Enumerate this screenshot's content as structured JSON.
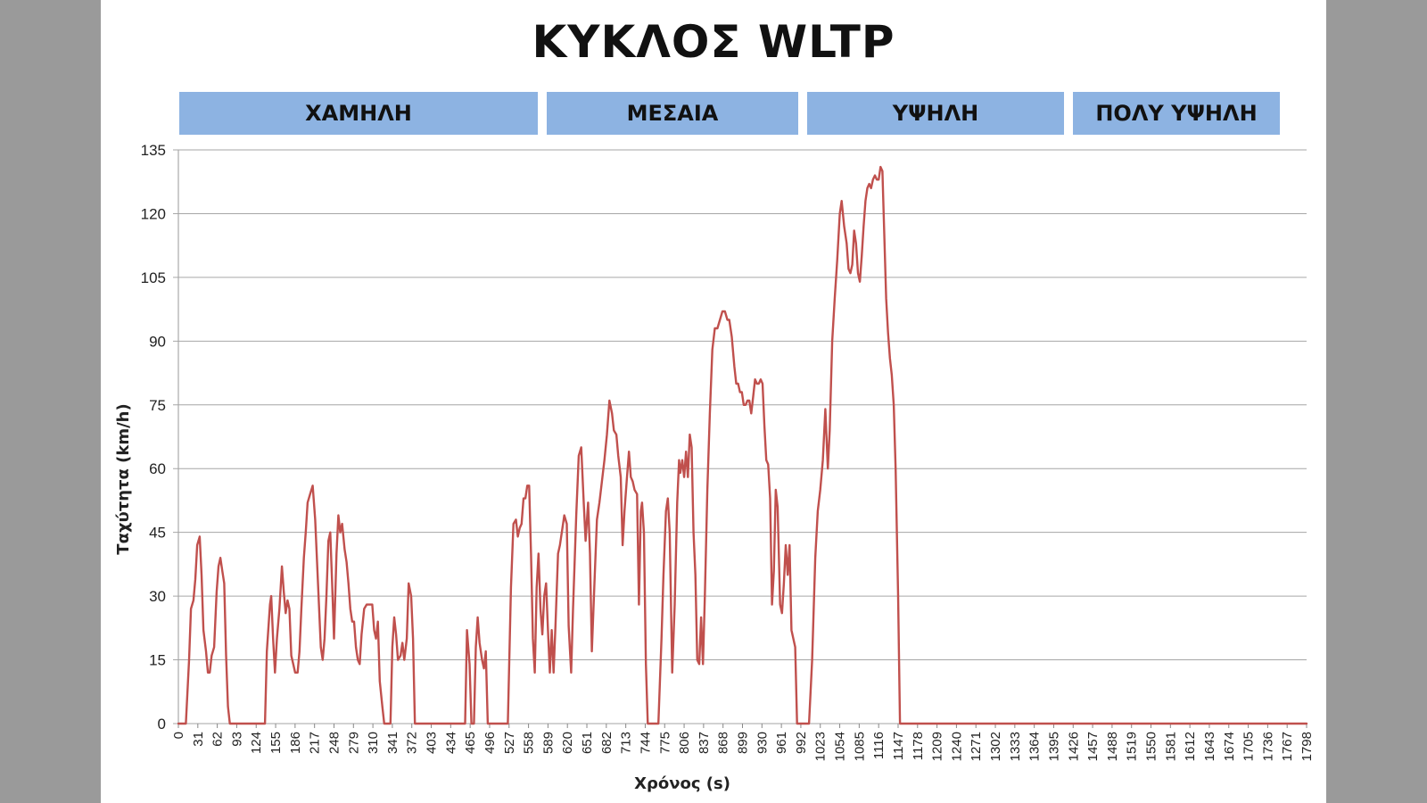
{
  "chart_data": {
    "type": "line",
    "title": "ΚΥΚΛΟΣ WLTP",
    "xlabel": "Χρόνος (s)",
    "ylabel": "Ταχύτητα (km/h)",
    "ylim": [
      0,
      135
    ],
    "xlim": [
      0,
      1798
    ],
    "grid": true,
    "yticks": [
      0,
      15,
      30,
      45,
      60,
      75,
      90,
      105,
      120,
      135
    ],
    "xticks": [
      0,
      31,
      62,
      93,
      124,
      155,
      186,
      217,
      248,
      279,
      310,
      341,
      372,
      403,
      434,
      465,
      496,
      527,
      558,
      589,
      620,
      651,
      682,
      713,
      744,
      775,
      806,
      837,
      868,
      899,
      930,
      961,
      992,
      1023,
      1054,
      1085,
      1116,
      1147,
      1178,
      1209,
      1240,
      1271,
      1302,
      1333,
      1364,
      1395,
      1426,
      1457,
      1488,
      1519,
      1550,
      1581,
      1612,
      1643,
      1674,
      1705,
      1736,
      1767,
      1798
    ],
    "line_color": "#c0504d",
    "phases": [
      {
        "label": "ΧΑΜΗΛΗ",
        "start": 0,
        "end": 589
      },
      {
        "label": "ΜΕΣΑΙΑ",
        "start": 589,
        "end": 1022
      },
      {
        "label": "ΥΨΗΛΗ",
        "start": 1022,
        "end": 1477
      },
      {
        "label": "ΠΟΛΥ ΥΨΗΛΗ",
        "start": 1477,
        "end": 1800
      }
    ],
    "series": [
      {
        "values": [
          [
            0,
            0
          ],
          [
            12,
            0
          ],
          [
            17,
            15
          ],
          [
            20,
            27
          ],
          [
            24,
            29
          ],
          [
            27,
            34
          ],
          [
            30,
            42
          ],
          [
            34,
            44
          ],
          [
            37,
            35
          ],
          [
            40,
            22
          ],
          [
            44,
            17
          ],
          [
            47,
            12
          ],
          [
            50,
            12
          ],
          [
            53,
            16
          ],
          [
            57,
            18
          ],
          [
            61,
            31
          ],
          [
            64,
            37
          ],
          [
            67,
            39
          ],
          [
            70,
            36
          ],
          [
            73,
            33
          ],
          [
            76,
            16
          ],
          [
            79,
            4
          ],
          [
            82,
            0
          ],
          [
            138,
            0
          ],
          [
            141,
            17
          ],
          [
            146,
            28
          ],
          [
            148,
            30
          ],
          [
            151,
            20
          ],
          [
            154,
            12
          ],
          [
            157,
            20
          ],
          [
            161,
            27
          ],
          [
            165,
            37
          ],
          [
            168,
            31
          ],
          [
            171,
            26
          ],
          [
            174,
            29
          ],
          [
            177,
            27
          ],
          [
            180,
            16
          ],
          [
            183,
            14
          ],
          [
            186,
            12
          ],
          [
            190,
            12
          ],
          [
            193,
            17
          ],
          [
            196,
            27
          ],
          [
            200,
            39
          ],
          [
            203,
            45
          ],
          [
            206,
            52
          ],
          [
            210,
            54
          ],
          [
            214,
            56
          ],
          [
            218,
            48
          ],
          [
            221,
            38
          ],
          [
            224,
            28
          ],
          [
            227,
            18
          ],
          [
            230,
            15
          ],
          [
            233,
            20
          ],
          [
            236,
            30
          ],
          [
            239,
            43
          ],
          [
            242,
            45
          ],
          [
            245,
            33
          ],
          [
            248,
            20
          ],
          [
            252,
            40
          ],
          [
            255,
            49
          ],
          [
            258,
            45
          ],
          [
            261,
            47
          ],
          [
            265,
            41
          ],
          [
            268,
            38
          ],
          [
            271,
            33
          ],
          [
            274,
            27
          ],
          [
            277,
            24
          ],
          [
            280,
            24
          ],
          [
            283,
            18
          ],
          [
            286,
            15
          ],
          [
            289,
            14
          ],
          [
            292,
            21
          ],
          [
            296,
            27
          ],
          [
            300,
            28
          ],
          [
            305,
            28
          ],
          [
            309,
            28
          ],
          [
            312,
            22
          ],
          [
            315,
            20
          ],
          [
            318,
            24
          ],
          [
            321,
            10
          ],
          [
            325,
            4
          ],
          [
            328,
            0
          ],
          [
            338,
            0
          ],
          [
            341,
            18
          ],
          [
            344,
            25
          ],
          [
            347,
            21
          ],
          [
            350,
            15
          ],
          [
            354,
            16
          ],
          [
            357,
            19
          ],
          [
            360,
            15
          ],
          [
            364,
            20
          ],
          [
            367,
            33
          ],
          [
            371,
            30
          ],
          [
            374,
            20
          ],
          [
            377,
            0
          ],
          [
            457,
            0
          ],
          [
            460,
            22
          ],
          [
            464,
            14
          ],
          [
            467,
            0
          ],
          [
            471,
            0
          ],
          [
            474,
            18
          ],
          [
            477,
            25
          ],
          [
            480,
            19
          ],
          [
            484,
            15
          ],
          [
            487,
            13
          ],
          [
            490,
            17
          ],
          [
            493,
            0
          ],
          [
            525,
            0
          ],
          [
            530,
            32
          ],
          [
            534,
            47
          ],
          [
            538,
            48
          ],
          [
            541,
            44
          ],
          [
            544,
            46
          ],
          [
            547,
            47
          ],
          [
            550,
            53
          ],
          [
            553,
            53
          ],
          [
            556,
            56
          ],
          [
            559,
            56
          ],
          [
            562,
            40
          ],
          [
            565,
            20
          ],
          [
            568,
            12
          ],
          [
            571,
            32
          ],
          [
            574,
            40
          ],
          [
            577,
            27
          ],
          [
            580,
            21
          ],
          [
            583,
            30
          ],
          [
            586,
            33
          ],
          [
            589,
            22
          ],
          [
            592,
            12
          ],
          [
            595,
            22
          ],
          [
            598,
            12
          ],
          [
            601,
            23
          ],
          [
            605,
            40
          ],
          [
            608,
            42
          ],
          [
            612,
            46
          ],
          [
            615,
            49
          ],
          [
            619,
            47
          ],
          [
            622,
            23
          ],
          [
            626,
            12
          ],
          [
            629,
            27
          ],
          [
            634,
            49
          ],
          [
            638,
            63
          ],
          [
            642,
            65
          ],
          [
            646,
            52
          ],
          [
            649,
            43
          ],
          [
            653,
            52
          ],
          [
            656,
            40
          ],
          [
            659,
            17
          ],
          [
            663,
            33
          ],
          [
            667,
            48
          ],
          [
            671,
            52
          ],
          [
            675,
            57
          ],
          [
            679,
            62
          ],
          [
            683,
            68
          ],
          [
            687,
            76
          ],
          [
            691,
            73
          ],
          [
            694,
            69
          ],
          [
            698,
            68
          ],
          [
            701,
            63
          ],
          [
            705,
            58
          ],
          [
            708,
            42
          ],
          [
            711,
            50
          ],
          [
            715,
            58
          ],
          [
            718,
            64
          ],
          [
            721,
            58
          ],
          [
            724,
            57
          ],
          [
            727,
            55
          ],
          [
            731,
            54
          ],
          [
            734,
            28
          ],
          [
            737,
            50
          ],
          [
            739,
            52
          ],
          [
            742,
            45
          ],
          [
            745,
            14
          ],
          [
            748,
            0
          ],
          [
            765,
            0
          ],
          [
            770,
            20
          ],
          [
            773,
            35
          ],
          [
            777,
            50
          ],
          [
            780,
            53
          ],
          [
            783,
            45
          ],
          [
            787,
            12
          ],
          [
            791,
            28
          ],
          [
            795,
            52
          ],
          [
            798,
            62
          ],
          [
            800,
            59
          ],
          [
            803,
            62
          ],
          [
            806,
            58
          ],
          [
            809,
            64
          ],
          [
            812,
            58
          ],
          [
            815,
            68
          ],
          [
            818,
            65
          ],
          [
            821,
            45
          ],
          [
            824,
            35
          ],
          [
            827,
            15
          ],
          [
            830,
            14
          ],
          [
            833,
            25
          ],
          [
            836,
            14
          ],
          [
            839,
            30
          ],
          [
            843,
            55
          ],
          [
            847,
            73
          ],
          [
            851,
            88
          ],
          [
            855,
            93
          ],
          [
            859,
            93
          ],
          [
            863,
            95
          ],
          [
            867,
            97
          ],
          [
            871,
            97
          ],
          [
            875,
            95
          ],
          [
            878,
            95
          ],
          [
            882,
            91
          ],
          [
            886,
            84
          ],
          [
            889,
            80
          ],
          [
            892,
            80
          ],
          [
            895,
            78
          ],
          [
            898,
            78
          ],
          [
            901,
            75
          ],
          [
            904,
            75
          ],
          [
            907,
            76
          ],
          [
            910,
            76
          ],
          [
            913,
            73
          ],
          [
            916,
            77
          ],
          [
            919,
            81
          ],
          [
            922,
            80
          ],
          [
            925,
            80
          ],
          [
            928,
            81
          ],
          [
            931,
            80
          ],
          [
            934,
            70
          ],
          [
            937,
            62
          ],
          [
            940,
            61
          ],
          [
            943,
            53
          ],
          [
            946,
            28
          ],
          [
            949,
            36
          ],
          [
            952,
            55
          ],
          [
            955,
            51
          ],
          [
            959,
            28
          ],
          [
            962,
            26
          ],
          [
            965,
            33
          ],
          [
            968,
            42
          ],
          [
            971,
            35
          ],
          [
            974,
            42
          ],
          [
            977,
            22
          ],
          [
            980,
            20
          ],
          [
            983,
            18
          ],
          [
            986,
            0
          ],
          [
            1005,
            0
          ],
          [
            1010,
            15
          ],
          [
            1015,
            39
          ],
          [
            1019,
            50
          ],
          [
            1023,
            55
          ],
          [
            1027,
            62
          ],
          [
            1031,
            74
          ],
          [
            1035,
            60
          ],
          [
            1038,
            69
          ],
          [
            1042,
            90
          ],
          [
            1046,
            100
          ],
          [
            1050,
            109
          ],
          [
            1054,
            120
          ],
          [
            1057,
            123
          ],
          [
            1061,
            117
          ],
          [
            1065,
            113
          ],
          [
            1068,
            107
          ],
          [
            1071,
            106
          ],
          [
            1074,
            108
          ],
          [
            1077,
            116
          ],
          [
            1080,
            113
          ],
          [
            1083,
            106
          ],
          [
            1086,
            104
          ],
          [
            1089,
            110
          ],
          [
            1092,
            117
          ],
          [
            1095,
            123
          ],
          [
            1098,
            126
          ],
          [
            1101,
            127
          ],
          [
            1104,
            126
          ],
          [
            1107,
            128
          ],
          [
            1110,
            129
          ],
          [
            1113,
            128
          ],
          [
            1116,
            128
          ],
          [
            1119,
            131
          ],
          [
            1122,
            130
          ],
          [
            1125,
            115
          ],
          [
            1128,
            100
          ],
          [
            1131,
            92
          ],
          [
            1134,
            86
          ],
          [
            1137,
            82
          ],
          [
            1140,
            75
          ],
          [
            1143,
            60
          ],
          [
            1147,
            30
          ],
          [
            1150,
            0
          ],
          [
            1798,
            0
          ]
        ]
      }
    ]
  }
}
